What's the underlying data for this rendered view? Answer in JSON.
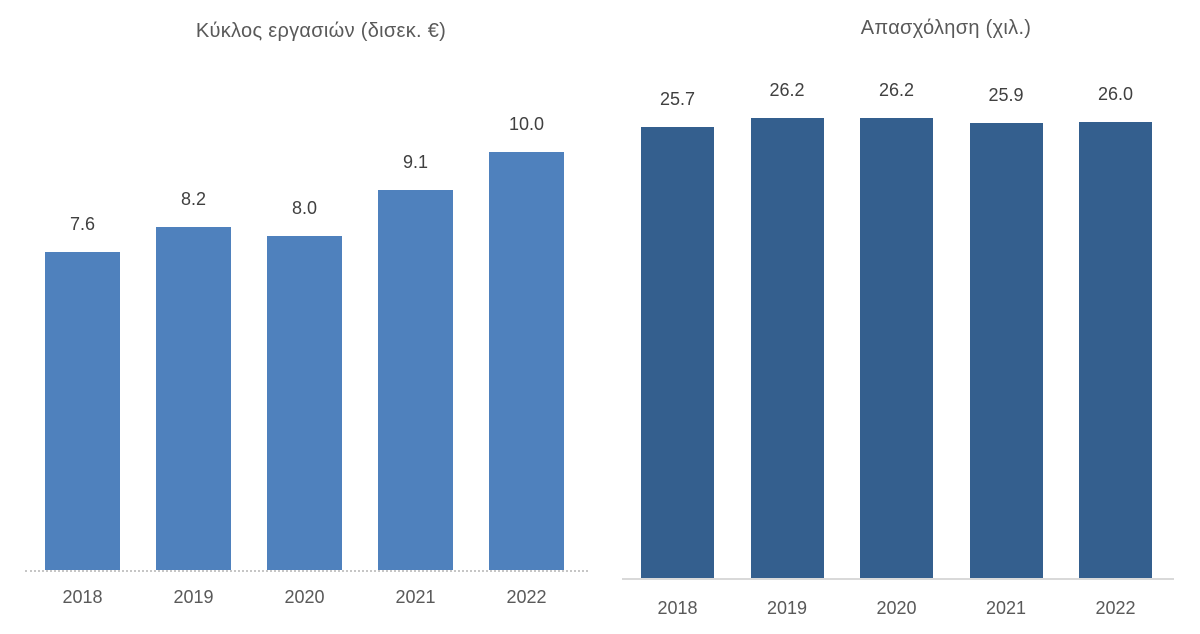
{
  "chart_data": [
    {
      "type": "bar",
      "title": "Κύκλος εργασιών (δισεκ. €)",
      "categories": [
        "2018",
        "2019",
        "2020",
        "2021",
        "2022"
      ],
      "values": [
        7.6,
        8.2,
        8.0,
        9.1,
        10.0
      ],
      "data_labels": [
        "7.6",
        "8.2",
        "8.0",
        "9.1",
        "10.0"
      ],
      "xlabel": "",
      "ylabel": "",
      "ylim": [
        0,
        10.5
      ],
      "grid": false,
      "legend": "none",
      "bar_color": "#4F81BD",
      "axis_line_style": "dotted",
      "axis_line_color": "#c6c6c6"
    },
    {
      "type": "bar",
      "title": "Απασχόληση  (χιλ.)",
      "categories": [
        "2018",
        "2019",
        "2020",
        "2021",
        "2022"
      ],
      "values": [
        25.7,
        26.2,
        26.2,
        25.9,
        26.0
      ],
      "data_labels": [
        "25.7",
        "26.2",
        "26.2",
        "25.9",
        "26.0"
      ],
      "xlabel": "",
      "ylabel": "",
      "ylim": [
        0,
        27
      ],
      "grid": false,
      "legend": "none",
      "bar_color": "#345F8E",
      "axis_line_style": "solid",
      "axis_line_color": "#d9d9d9"
    }
  ],
  "text_colors": {
    "title": "#595959",
    "data_label": "#404040",
    "x_tick": "#595959"
  }
}
